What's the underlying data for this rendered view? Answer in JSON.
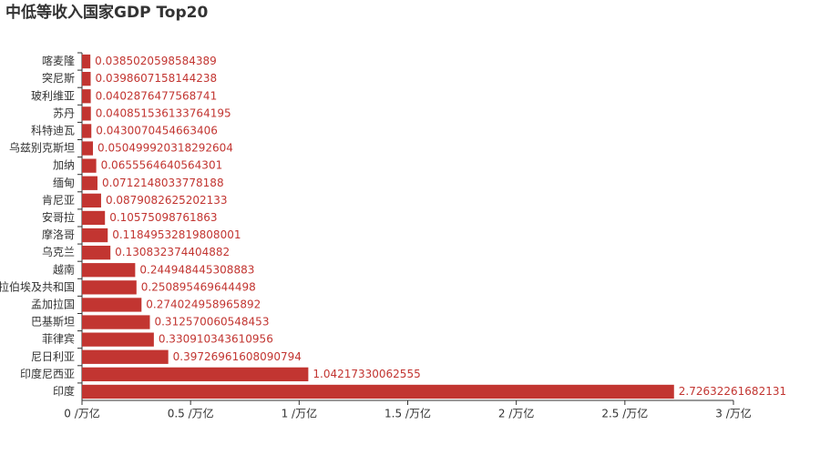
{
  "chart_data": {
    "type": "hbar",
    "title": "中低等收入国家GDP Top20",
    "categories": [
      "喀麦隆",
      "突尼斯",
      "玻利维亚",
      "苏丹",
      "科特迪瓦",
      "乌兹别克斯坦",
      "加纳",
      "缅甸",
      "肯尼亚",
      "安哥拉",
      "摩洛哥",
      "乌克兰",
      "越南",
      "拉伯埃及共和国",
      "孟加拉国",
      "巴基斯坦",
      "菲律宾",
      "尼日利亚",
      "印度尼西亚",
      "印度"
    ],
    "values": [
      0.0385020598584389,
      0.0398607158144238,
      0.0402876477568741,
      0.040851536133764195,
      0.0430070454663406,
      0.050499920318292604,
      0.0655564640564301,
      0.0712148033778188,
      0.0879082625202133,
      0.10575098761863,
      0.11849532819808001,
      0.130832374404882,
      0.244948445308883,
      0.250895469644498,
      0.274024958965892,
      0.312570060548453,
      0.330910343610956,
      0.39726961608090794,
      1.04217330062555,
      2.72632261682131
    ],
    "color": "#c23531",
    "xlim": [
      0,
      3
    ],
    "xticks": [
      {
        "value": 0,
        "label": "0 /万亿"
      },
      {
        "value": 0.5,
        "label": "0.5 /万亿"
      },
      {
        "value": 1,
        "label": "1 /万亿"
      },
      {
        "value": 1.5,
        "label": "1.5 /万亿"
      },
      {
        "value": 2,
        "label": "2 /万亿"
      },
      {
        "value": 2.5,
        "label": "2.5 /万亿"
      },
      {
        "value": 3,
        "label": "3 /万亿"
      }
    ]
  }
}
